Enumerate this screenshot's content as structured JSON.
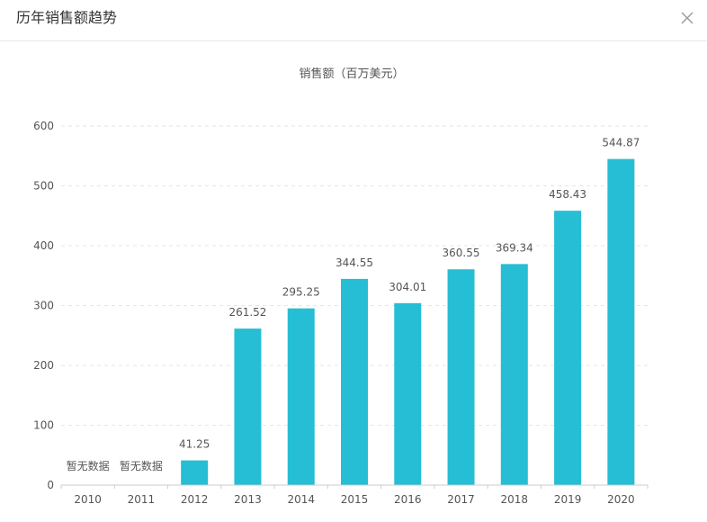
{
  "dialog": {
    "title": "历年销售额趋势",
    "close_icon": "close-icon"
  },
  "chart_data": {
    "type": "bar",
    "title": "销售额（百万美元）",
    "categories": [
      "2010",
      "2011",
      "2012",
      "2013",
      "2014",
      "2015",
      "2016",
      "2017",
      "2018",
      "2019",
      "2020"
    ],
    "values": [
      null,
      null,
      41.25,
      261.52,
      295.25,
      344.55,
      304.01,
      360.55,
      369.34,
      458.43,
      544.87
    ],
    "data_labels": [
      "暂无数据",
      "暂无数据",
      "41.25",
      "261.52",
      "295.25",
      "344.55",
      "304.01",
      "360.55",
      "369.34",
      "458.43",
      "544.87"
    ],
    "ylim": [
      0,
      600
    ],
    "yticks": [
      "0",
      "100",
      "200",
      "300",
      "400",
      "500",
      "600"
    ],
    "grid": true,
    "bar_color": "#26bed4"
  }
}
